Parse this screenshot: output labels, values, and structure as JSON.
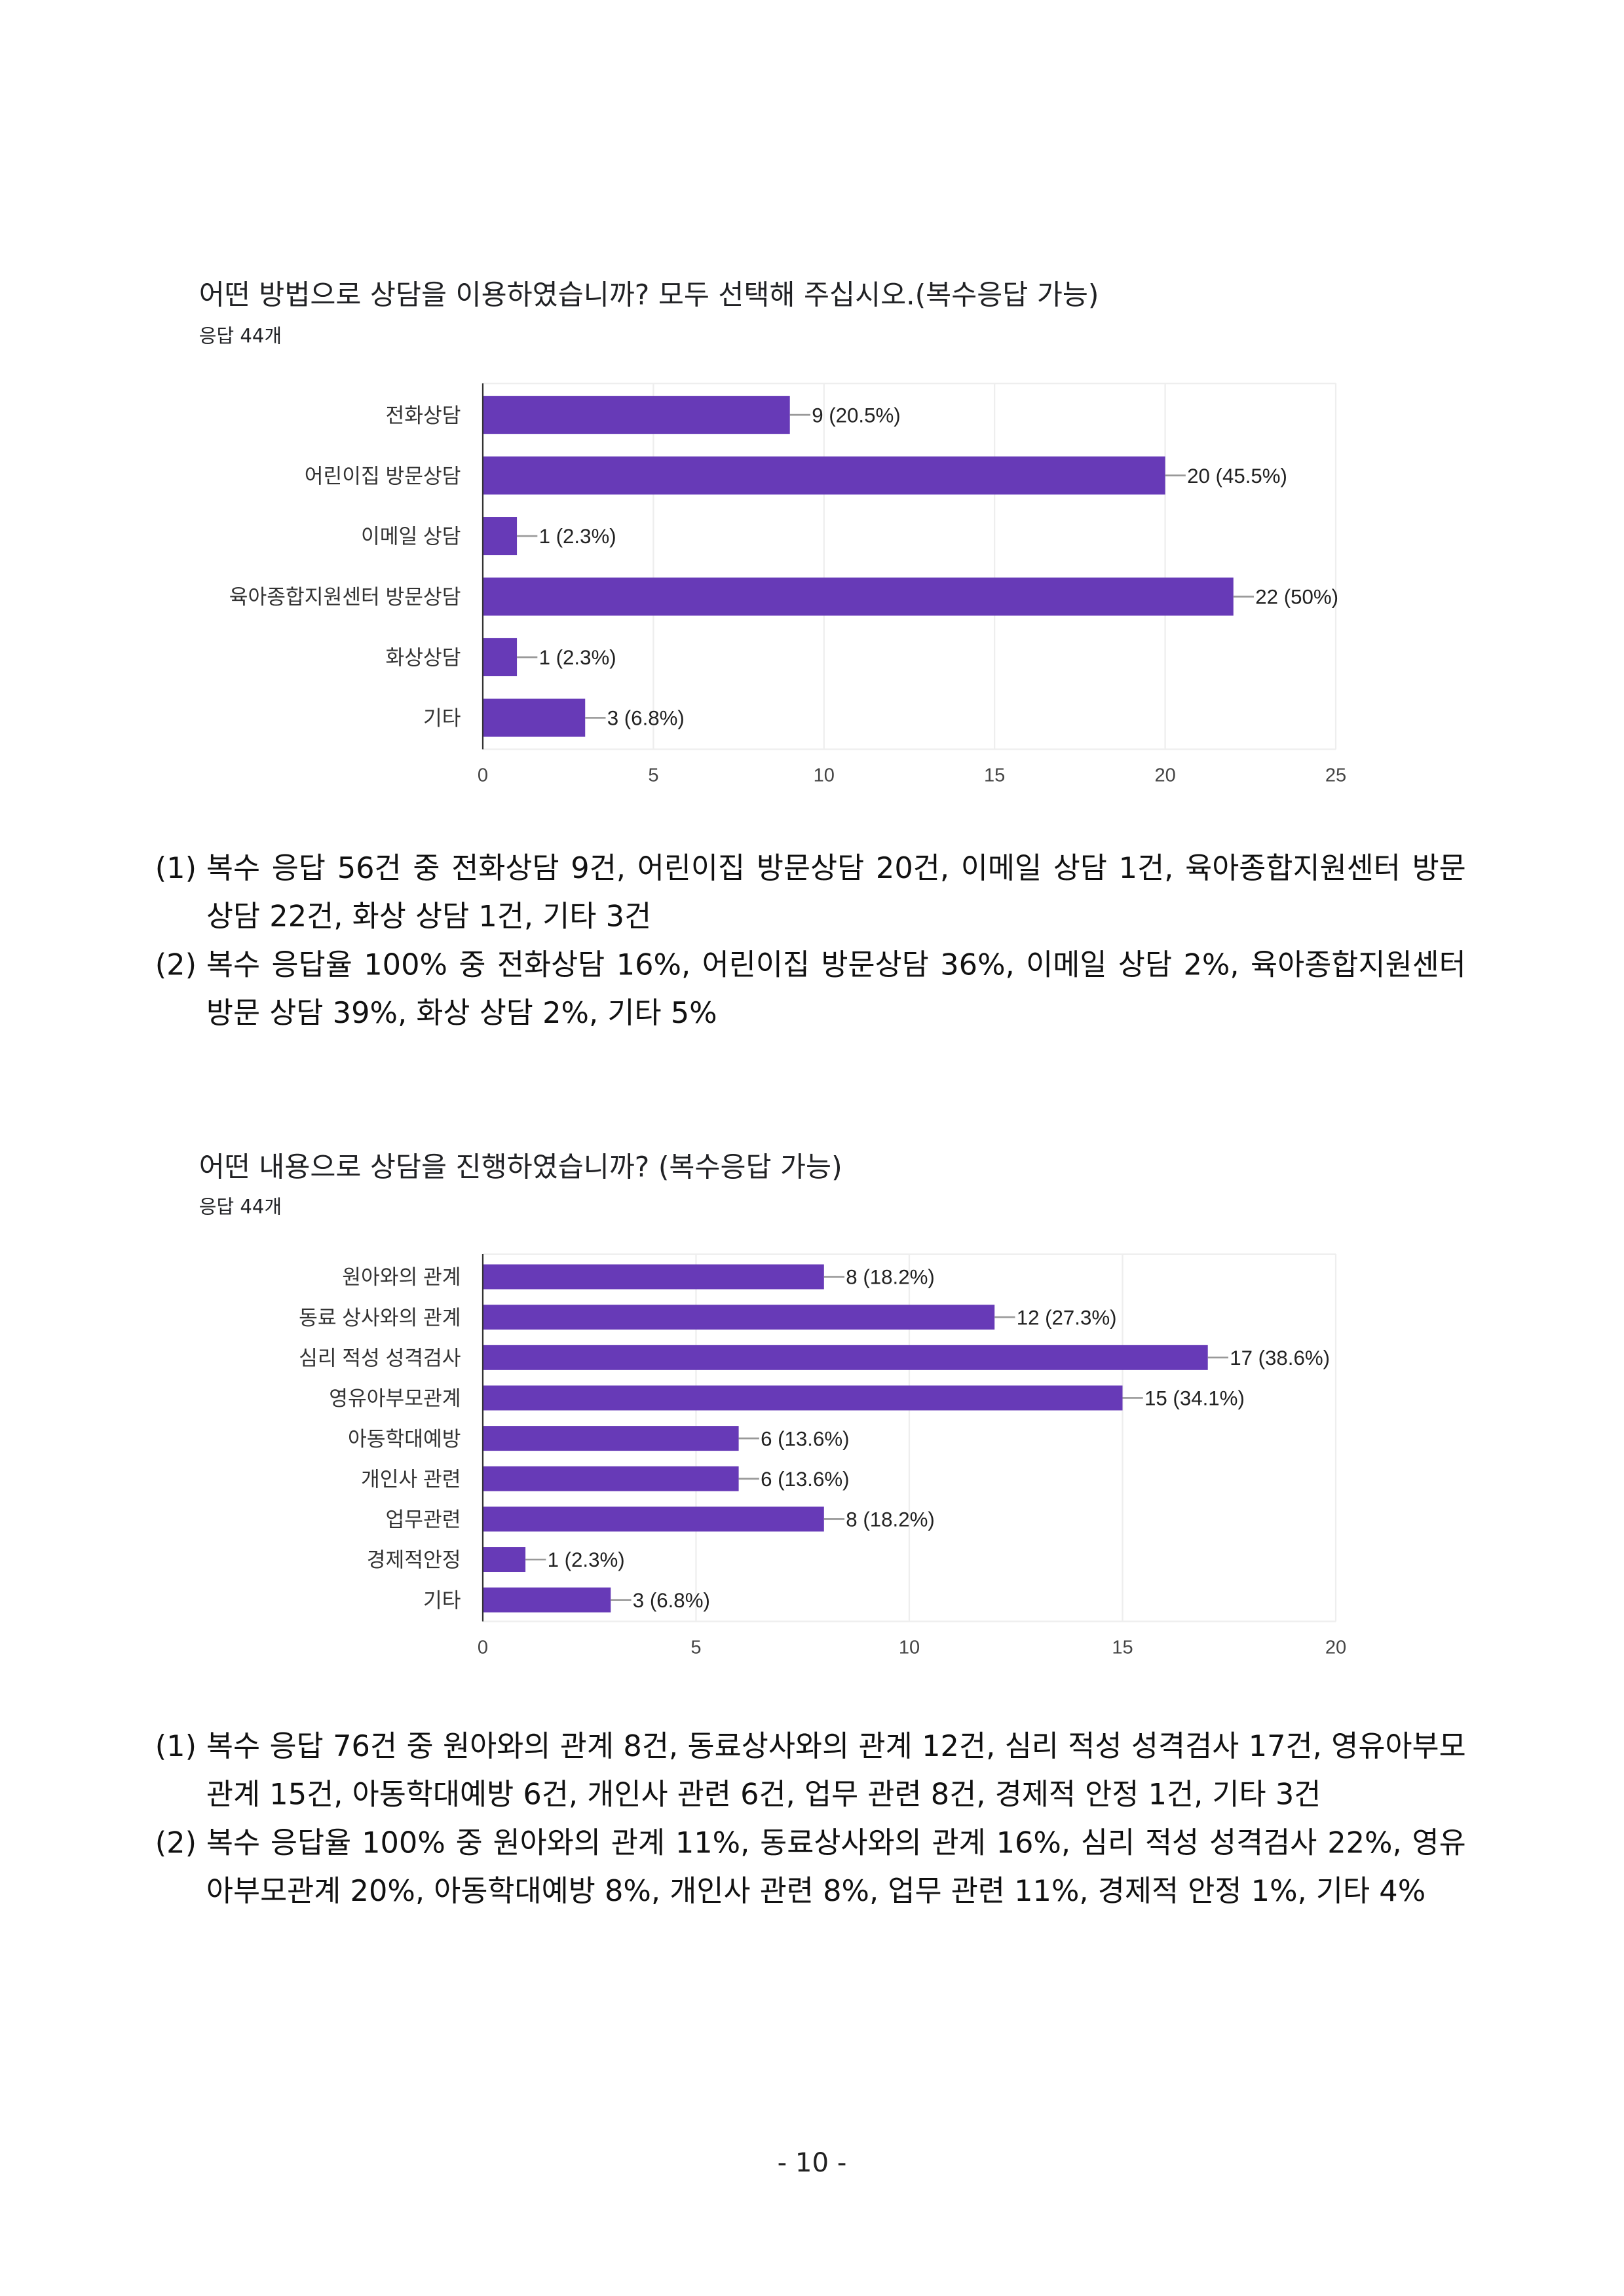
{
  "chart_data": [
    {
      "type": "bar",
      "orientation": "horizontal",
      "title": "어떤 방법으로 상담을 이용하였습니까? 모두 선택해 주십시오.(복수응답 가능)",
      "subtitle": "응답 44개",
      "categories": [
        "전화상담",
        "어린이집 방문상담",
        "이메일 상담",
        "육아종합지원센터 방문상담",
        "화상상담",
        "기타"
      ],
      "values": [
        9,
        20,
        1,
        22,
        1,
        3
      ],
      "data_labels": [
        "9 (20.5%)",
        "20 (45.5%)",
        "1 (2.3%)",
        "22 (50%)",
        "1 (2.3%)",
        "3 (6.8%)"
      ],
      "xlim": [
        0,
        25
      ],
      "xticks": [
        "0",
        "5",
        "10",
        "15",
        "20",
        "25"
      ],
      "grid": true,
      "color": "#673ab7"
    },
    {
      "type": "bar",
      "orientation": "horizontal",
      "title": "어떤 내용으로 상담을 진행하였습니까? (복수응답 가능)",
      "subtitle": "응답 44개",
      "categories": [
        "원아와의 관계",
        "동료 상사와의 관계",
        "심리 적성 성격검사",
        "영유아부모관계",
        "아동학대예방",
        "개인사 관련",
        "업무관련",
        "경제적안정",
        "기타"
      ],
      "values": [
        8,
        12,
        17,
        15,
        6,
        6,
        8,
        1,
        3
      ],
      "data_labels": [
        "8 (18.2%)",
        "12 (27.3%)",
        "17 (38.6%)",
        "15 (34.1%)",
        "6 (13.6%)",
        "6 (13.6%)",
        "8 (18.2%)",
        "1 (2.3%)",
        "3 (6.8%)"
      ],
      "xlim": [
        0,
        20
      ],
      "xticks": [
        "0",
        "5",
        "10",
        "15",
        "20"
      ],
      "grid": true,
      "color": "#673ab7"
    }
  ],
  "notes1": [
    {
      "num": "(1)",
      "text": "복수 응답 56건 중 전화상담 9건, 어린이집 방문상담 20건, 이메일 상담 1건, 육아종합지원센터 방문 상담 22건, 화상 상담 1건, 기타 3건"
    },
    {
      "num": "(2)",
      "text": "복수 응답율 100% 중 전화상담 16%, 어린이집 방문상담 36%, 이메일 상담 2%, 육아종합지원센터 방문 상담 39%, 화상 상담 2%, 기타 5%"
    }
  ],
  "notes2": [
    {
      "num": "(1)",
      "text": "복수 응답 76건 중 원아와의 관계 8건, 동료상사와의 관계 12건, 심리 적성 성격검사 17건, 영유아부모관계 15건, 아동학대예방 6건, 개인사 관련 6건, 업무 관련 8건, 경제적 안정 1건, 기타 3건"
    },
    {
      "num": "(2)",
      "text": "복수 응답율 100% 중 원아와의 관계 11%, 동료상사와의 관계 16%, 심리 적성 성격검사 22%, 영유아부모관계 20%, 아동학대예방 8%, 개인사 관련 8%, 업무 관련 11%, 경제적 안정 1%, 기타 4%"
    }
  ],
  "page_number": "- 10 -"
}
